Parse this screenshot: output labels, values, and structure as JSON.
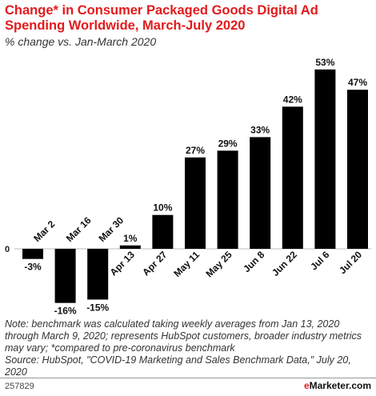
{
  "header": {
    "title": "Change* in Consumer Packaged Goods Digital Ad Spending Worldwide, March-July 2020",
    "subtitle": "% change vs. Jan-March 2020"
  },
  "chart_data": {
    "type": "bar",
    "categories": [
      "Mar 2",
      "Mar 16",
      "Mar 30",
      "Apr 13",
      "Apr 27",
      "May 11",
      "May 25",
      "Jun 8",
      "Jun 22",
      "Jul 6",
      "Jul 20"
    ],
    "values": [
      -3,
      -16,
      -15,
      1,
      10,
      27,
      29,
      33,
      42,
      53,
      47
    ],
    "data_labels": [
      "-3%",
      "-16%",
      "-15%",
      "1%",
      "10%",
      "27%",
      "29%",
      "33%",
      "42%",
      "53%",
      "47%"
    ],
    "zero_label": "0",
    "ylim": [
      -16,
      53
    ],
    "bar_color": "#000000"
  },
  "notes": {
    "note": "Note: benchmark was calculated taking weekly averages from Jan 13, 2020 through March 9, 2020; represents HubSpot customers, broader industry metrics may vary; *compared to pre-coronavirus benchmark",
    "source": "Source: HubSpot, \"COVID-19 Marketing and Sales Benchmark Data,\" July 20, 2020"
  },
  "footer": {
    "id": "257829",
    "brand_prefix": "e",
    "brand_rest": "Marketer.com"
  }
}
